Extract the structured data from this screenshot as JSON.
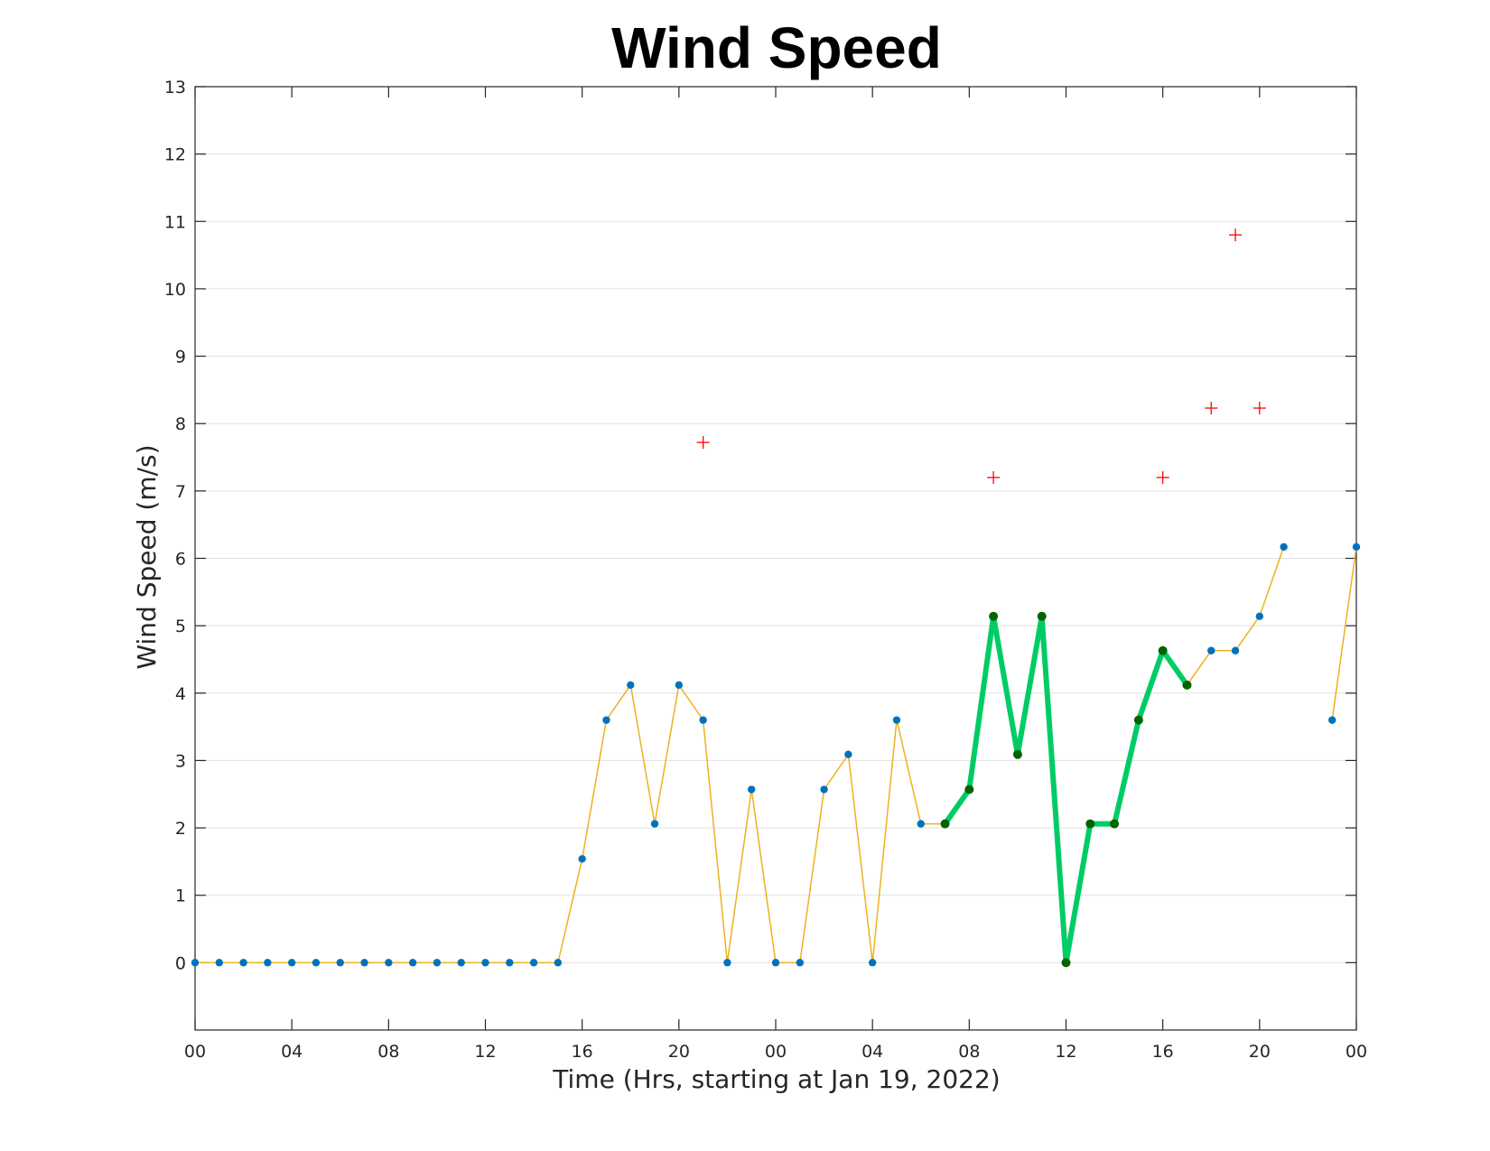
{
  "chart_data": {
    "type": "line",
    "title": "Wind Speed",
    "xlabel": "Time (Hrs, starting at Jan 19, 2022)",
    "ylabel": "Wind Speed (m/s)",
    "xlim": [
      0,
      48
    ],
    "ylim": [
      -1,
      13
    ],
    "grid": "y",
    "xticks": [
      0,
      4,
      8,
      12,
      16,
      20,
      24,
      28,
      32,
      36,
      40,
      44,
      48
    ],
    "xtick_labels": [
      "00",
      "04",
      "08",
      "12",
      "16",
      "20",
      "00",
      "04",
      "08",
      "12",
      "16",
      "20",
      "00"
    ],
    "yticks": [
      0,
      1,
      2,
      3,
      4,
      5,
      6,
      7,
      8,
      9,
      10,
      11,
      12,
      13
    ],
    "ytick_labels": [
      "0",
      "1",
      "2",
      "3",
      "4",
      "5",
      "6",
      "7",
      "8",
      "9",
      "10",
      "11",
      "12",
      "13"
    ],
    "colors": {
      "line": "#edb120",
      "markers": "#0072bd",
      "highlight_line": "#00cc66",
      "highlight_markers": "#006400",
      "gust": "#ff0000"
    },
    "series": [
      {
        "style": "line-with-markers",
        "x": [
          0,
          1,
          2,
          3,
          4,
          5,
          6,
          7,
          8,
          9,
          10,
          11,
          12,
          13,
          14,
          15,
          16,
          17,
          18,
          19,
          20,
          21,
          22,
          23,
          24,
          25,
          26,
          27,
          28,
          29,
          30,
          31,
          32,
          33,
          34,
          35,
          36,
          37,
          38,
          39,
          40,
          41,
          42,
          43,
          44,
          45,
          46,
          47,
          48
        ],
        "y": [
          0,
          0,
          0,
          0,
          0,
          0,
          0,
          0,
          0,
          0,
          0,
          0,
          0,
          0,
          0,
          0,
          1.54,
          3.6,
          4.12,
          2.06,
          4.12,
          3.6,
          0,
          2.57,
          0,
          0,
          2.57,
          3.09,
          0,
          3.6,
          2.06,
          2.06,
          2.57,
          5.14,
          3.09,
          5.14,
          0,
          2.06,
          2.06,
          3.6,
          4.63,
          4.12,
          4.63,
          4.63,
          5.14,
          6.17,
          null,
          3.6,
          6.17
        ]
      },
      {
        "style": "highlight",
        "x": [
          31,
          32,
          33,
          34,
          35,
          36,
          37,
          38,
          39,
          40,
          41
        ],
        "y": [
          2.06,
          2.57,
          5.14,
          3.09,
          5.14,
          0,
          2.06,
          2.06,
          3.6,
          4.63,
          4.12
        ]
      },
      {
        "style": "plus-markers",
        "x": [
          21,
          33,
          40,
          42,
          43,
          44
        ],
        "y": [
          7.72,
          7.2,
          7.2,
          8.23,
          10.8,
          8.23
        ]
      }
    ]
  }
}
